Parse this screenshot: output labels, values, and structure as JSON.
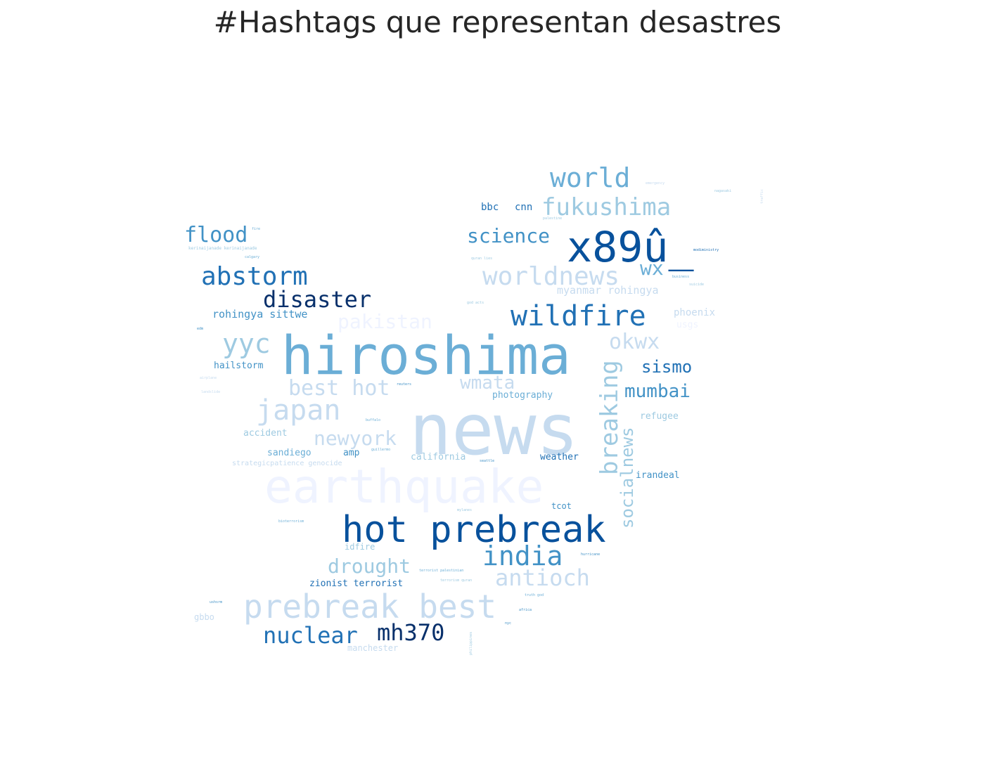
{
  "title": "#Hashtags que representan desastres",
  "palette": "Blues",
  "words": [
    {
      "text": "news",
      "color": "#c6dbef"
    },
    {
      "text": "hiroshima",
      "color": "#6baed6"
    },
    {
      "text": "earthquake",
      "color": "#eff3ff"
    },
    {
      "text": "hot prebreak",
      "color": "#08519c"
    },
    {
      "text": "x89û_",
      "color": "#08519c"
    },
    {
      "text": "prebreak best",
      "color": "#c6dbef"
    },
    {
      "text": "wildfire",
      "color": "#2171b5"
    },
    {
      "text": "abstorm",
      "color": "#2171b5"
    },
    {
      "text": "disaster",
      "color": "#08306b"
    },
    {
      "text": "world",
      "color": "#6baed6"
    },
    {
      "text": "fukushima",
      "color": "#9ecae1"
    },
    {
      "text": "worldnews",
      "color": "#c6dbef"
    },
    {
      "text": "flood",
      "color": "#4292c6"
    },
    {
      "text": "science",
      "color": "#4292c6"
    },
    {
      "text": "japan",
      "color": "#c6dbef"
    },
    {
      "text": "yyc",
      "color": "#9ecae1"
    },
    {
      "text": "india",
      "color": "#4292c6"
    },
    {
      "text": "nuclear",
      "color": "#2171b5"
    },
    {
      "text": "mh370",
      "color": "#08306b"
    },
    {
      "text": "antioch",
      "color": "#c6dbef"
    },
    {
      "text": "drought",
      "color": "#9ecae1"
    },
    {
      "text": "breaking",
      "color": "#9ecae1"
    },
    {
      "text": "socialnews",
      "color": "#9ecae1"
    },
    {
      "text": "best hot",
      "color": "#c6dbef"
    },
    {
      "text": "pakistan",
      "color": "#eff3ff"
    },
    {
      "text": "okwx",
      "color": "#c6dbef"
    },
    {
      "text": "wx",
      "color": "#6baed6"
    },
    {
      "text": "sismo",
      "color": "#2171b5"
    },
    {
      "text": "mumbai",
      "color": "#4292c6"
    },
    {
      "text": "newyork",
      "color": "#c6dbef"
    },
    {
      "text": "wmata",
      "color": "#c6dbef"
    },
    {
      "text": "bbc",
      "color": "#2171b5"
    },
    {
      "text": "cnn",
      "color": "#2171b5"
    },
    {
      "text": "rohingya sittwe",
      "color": "#4292c6"
    },
    {
      "text": "hailstorm",
      "color": "#4292c6"
    },
    {
      "text": "zionist terrorist",
      "color": "#2171b5"
    },
    {
      "text": "myanmar rohingya",
      "color": "#c6dbef"
    },
    {
      "text": "phoenix",
      "color": "#c6dbef"
    },
    {
      "text": "usgs",
      "color": "#eff3ff"
    },
    {
      "text": "photography",
      "color": "#6baed6"
    },
    {
      "text": "refugee",
      "color": "#9ecae1"
    },
    {
      "text": "accident",
      "color": "#9ecae1"
    },
    {
      "text": "sandiego",
      "color": "#6baed6"
    },
    {
      "text": "amp",
      "color": "#4292c6"
    },
    {
      "text": "california",
      "color": "#9ecae1"
    },
    {
      "text": "weather",
      "color": "#2171b5"
    },
    {
      "text": "irandeal",
      "color": "#4292c6"
    },
    {
      "text": "tcot",
      "color": "#4292c6"
    },
    {
      "text": "strategicpatience genocide",
      "color": "#c6dbef"
    },
    {
      "text": "idfire",
      "color": "#9ecae1"
    },
    {
      "text": "manchester",
      "color": "#c6dbef"
    },
    {
      "text": "gbbo",
      "color": "#c6dbef"
    },
    {
      "text": "kerinaijanade kerinaijanade",
      "color": "#9ecae1"
    },
    {
      "text": "calgary",
      "color": "#6baed6"
    },
    {
      "text": "fire",
      "color": "#6baed6"
    },
    {
      "text": "emergency",
      "color": "#c6dbef"
    },
    {
      "text": "nagasaki",
      "color": "#9ecae1"
    },
    {
      "text": "traffic",
      "color": "#c6dbef"
    },
    {
      "text": "modiministry",
      "color": "#2171b5"
    },
    {
      "text": "palestine",
      "color": "#9ecae1"
    },
    {
      "text": "quran lies",
      "color": "#9ecae1"
    },
    {
      "text": "business",
      "color": "#6baed6"
    },
    {
      "text": "suicide",
      "color": "#9ecae1"
    },
    {
      "text": "god acts",
      "color": "#9ecae1"
    },
    {
      "text": "reuters",
      "color": "#4292c6"
    },
    {
      "text": "buffalo",
      "color": "#6baed6"
    },
    {
      "text": "guillermo",
      "color": "#6baed6"
    },
    {
      "text": "seattle",
      "color": "#4292c6"
    },
    {
      "text": "hurricane",
      "color": "#4292c6"
    },
    {
      "text": "terrorist palestinian",
      "color": "#6baed6"
    },
    {
      "text": "terrorism quran",
      "color": "#9ecae1"
    },
    {
      "text": "truth god",
      "color": "#6baed6"
    },
    {
      "text": "africa",
      "color": "#4292c6"
    },
    {
      "text": "bioterrorism",
      "color": "#6baed6"
    },
    {
      "text": "airplane",
      "color": "#c6dbef"
    },
    {
      "text": "landslide",
      "color": "#c6dbef"
    },
    {
      "text": "philippines",
      "color": "#9ecae1"
    },
    {
      "text": "edm",
      "color": "#4292c6"
    },
    {
      "text": "ushsrm",
      "color": "#4292c6"
    },
    {
      "text": "nyc",
      "color": "#4292c6"
    },
    {
      "text": "mylanes",
      "color": "#9ecae1"
    }
  ]
}
